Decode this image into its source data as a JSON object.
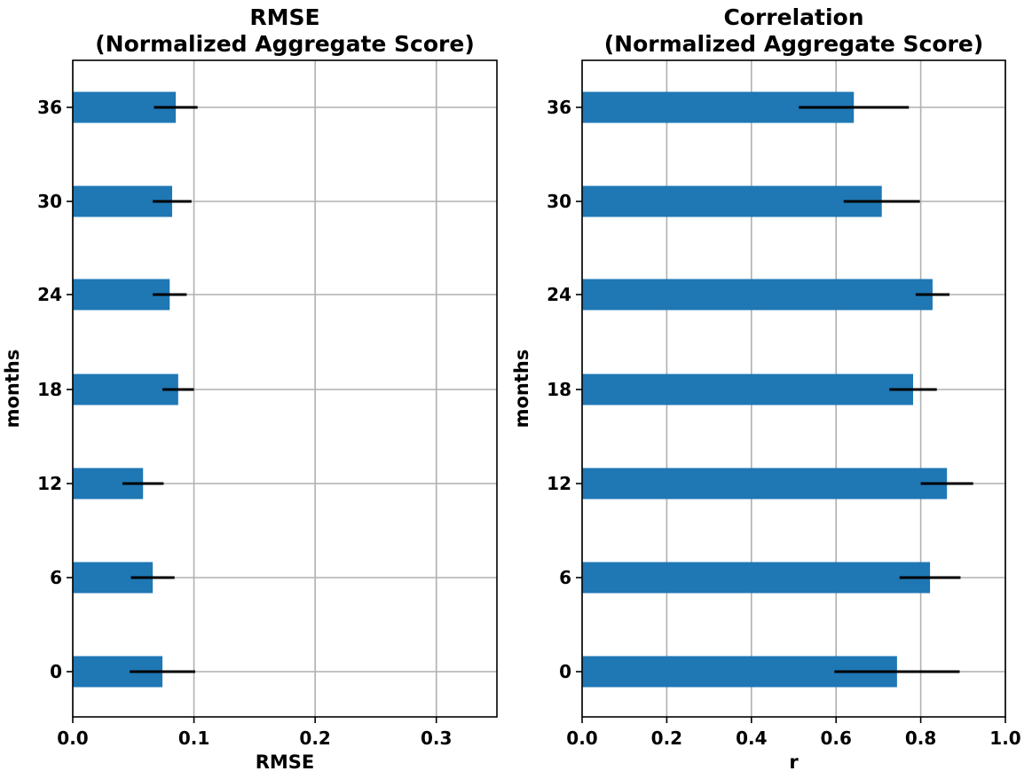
{
  "colors": {
    "bar": "#1f77b4",
    "error": "#000000",
    "grid": "#b0b0b0",
    "frame": "#000000"
  },
  "chart_data": [
    {
      "type": "bar",
      "orientation": "horizontal",
      "title": [
        "RMSE",
        "(Normalized Aggregate Score)"
      ],
      "xlabel": "RMSE",
      "ylabel": "months",
      "categories": [
        "0",
        "6",
        "12",
        "18",
        "24",
        "30",
        "36"
      ],
      "values": [
        0.074,
        0.066,
        0.058,
        0.087,
        0.08,
        0.082,
        0.085
      ],
      "errors": [
        0.027,
        0.018,
        0.017,
        0.013,
        0.014,
        0.016,
        0.018
      ],
      "xlim": [
        0,
        0.35
      ],
      "xticks": [
        0.0,
        0.1,
        0.2,
        0.3
      ],
      "xtick_labels": [
        "0.0",
        "0.1",
        "0.2",
        "0.3"
      ],
      "grid": true
    },
    {
      "type": "bar",
      "orientation": "horizontal",
      "title": [
        "Correlation",
        "(Normalized Aggregate Score)"
      ],
      "xlabel": "r",
      "ylabel": "months",
      "categories": [
        "0",
        "6",
        "12",
        "18",
        "24",
        "30",
        "36"
      ],
      "values": [
        0.744,
        0.822,
        0.862,
        0.782,
        0.828,
        0.708,
        0.642
      ],
      "errors": [
        0.148,
        0.072,
        0.062,
        0.056,
        0.04,
        0.09,
        0.13
      ],
      "xlim": [
        0,
        1.0
      ],
      "xticks": [
        0.0,
        0.2,
        0.4,
        0.6,
        0.8,
        1.0
      ],
      "xtick_labels": [
        "0.0",
        "0.2",
        "0.4",
        "0.6",
        "0.8",
        "1.0"
      ],
      "grid": true
    }
  ]
}
